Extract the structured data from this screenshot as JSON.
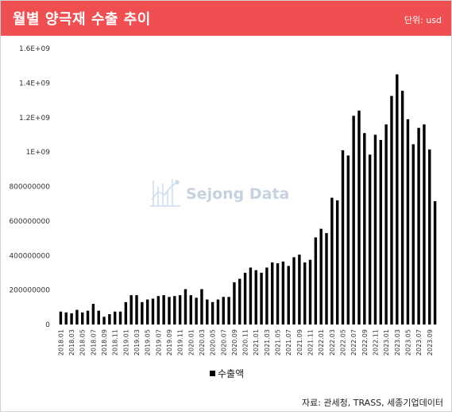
{
  "header": {
    "title": "월별 양극재 수출 추이",
    "unit": "단위: usd"
  },
  "watermark": {
    "text": "Sejong Data"
  },
  "legend": {
    "label": "수출액"
  },
  "source": "자료: 관세청, TRASS, 세종기업데이터",
  "colors": {
    "header": "#ef4f50",
    "bar": "#000000"
  },
  "chart_data": {
    "type": "bar",
    "ylim": [
      0,
      1600000000
    ],
    "yticks": [
      0,
      200000000,
      400000000,
      600000000,
      800000000,
      1000000000,
      1200000000,
      1400000000,
      1600000000
    ],
    "ytick_labels": [
      "0",
      "200000000",
      "400000000",
      "600000000",
      "800000000",
      "1E+09",
      "1.2E+09",
      "1.4E+09",
      "1.6E+09"
    ],
    "categories": [
      "2018.01",
      "2018.02",
      "2018.03",
      "2018.04",
      "2018.05",
      "2018.06",
      "2018.07",
      "2018.08",
      "2018.09",
      "2018.10",
      "2018.11",
      "2018.12",
      "2019.01",
      "2019.02",
      "2019.03",
      "2019.04",
      "2019.05",
      "2019.06",
      "2019.07",
      "2019.08",
      "2019.09",
      "2019.10",
      "2019.11",
      "2019.12",
      "2020.01",
      "2020.02",
      "2020.03",
      "2020.04",
      "2020.05",
      "2020.06",
      "2020.07",
      "2020.08",
      "2020.09",
      "2020.10",
      "2020.11",
      "2020.12",
      "2021.01",
      "2021.02",
      "2021.03",
      "2021.04",
      "2021.05",
      "2021.06",
      "2021.07",
      "2021.08",
      "2021.09",
      "2021.10",
      "2021.11",
      "2021.12",
      "2022.01",
      "2022.02",
      "2022.03",
      "2022.04",
      "2022.05",
      "2022.06",
      "2022.07",
      "2022.08",
      "2022.09",
      "2022.10",
      "2022.11",
      "2022.12",
      "2023.01",
      "2023.02",
      "2023.03",
      "2023.04",
      "2023.05",
      "2023.06",
      "2023.07",
      "2023.08",
      "2023.09",
      "2023.10"
    ],
    "xtick_every": 2,
    "series": [
      {
        "name": "수출액",
        "values": [
          75000000,
          70000000,
          65000000,
          85000000,
          70000000,
          80000000,
          120000000,
          80000000,
          45000000,
          60000000,
          75000000,
          75000000,
          130000000,
          170000000,
          170000000,
          130000000,
          145000000,
          150000000,
          165000000,
          170000000,
          160000000,
          165000000,
          170000000,
          205000000,
          170000000,
          155000000,
          205000000,
          145000000,
          130000000,
          145000000,
          160000000,
          160000000,
          245000000,
          265000000,
          300000000,
          330000000,
          315000000,
          300000000,
          330000000,
          360000000,
          355000000,
          365000000,
          340000000,
          390000000,
          405000000,
          360000000,
          375000000,
          505000000,
          555000000,
          530000000,
          735000000,
          720000000,
          1010000000,
          980000000,
          1210000000,
          1240000000,
          1110000000,
          985000000,
          1100000000,
          1070000000,
          1160000000,
          1325000000,
          1450000000,
          1355000000,
          1190000000,
          1045000000,
          1140000000,
          1160000000,
          1015000000,
          715000000
        ]
      }
    ]
  }
}
